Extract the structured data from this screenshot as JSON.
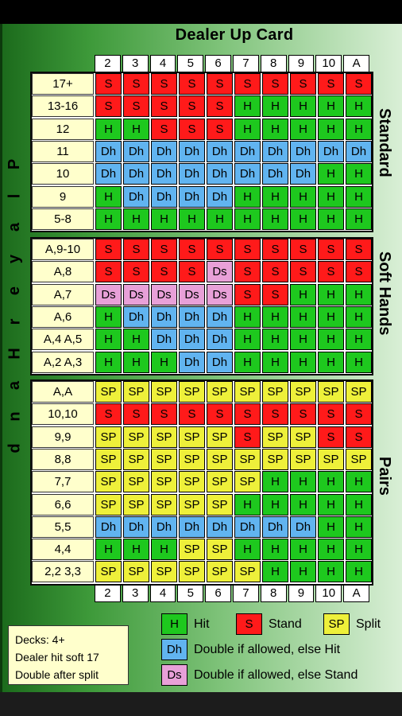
{
  "title": "Dealer Up Card",
  "dealer_cards": [
    "2",
    "3",
    "4",
    "5",
    "6",
    "7",
    "8",
    "9",
    "10",
    "A"
  ],
  "section_labels": {
    "standard": "Standard",
    "soft": "Soft Hands",
    "pairs": "Pairs"
  },
  "side_label": [
    "P",
    "l",
    "a",
    "y",
    "e",
    "r",
    "H",
    "a",
    "n",
    "d"
  ],
  "standard": [
    {
      "label": "17+",
      "cells": [
        "S",
        "S",
        "S",
        "S",
        "S",
        "S",
        "S",
        "S",
        "S",
        "S"
      ]
    },
    {
      "label": "13-16",
      "cells": [
        "S",
        "S",
        "S",
        "S",
        "S",
        "H",
        "H",
        "H",
        "H",
        "H"
      ]
    },
    {
      "label": "12",
      "cells": [
        "H",
        "H",
        "S",
        "S",
        "S",
        "H",
        "H",
        "H",
        "H",
        "H"
      ]
    },
    {
      "label": "11",
      "cells": [
        "Dh",
        "Dh",
        "Dh",
        "Dh",
        "Dh",
        "Dh",
        "Dh",
        "Dh",
        "Dh",
        "Dh"
      ]
    },
    {
      "label": "10",
      "cells": [
        "Dh",
        "Dh",
        "Dh",
        "Dh",
        "Dh",
        "Dh",
        "Dh",
        "Dh",
        "H",
        "H"
      ]
    },
    {
      "label": "9",
      "cells": [
        "H",
        "Dh",
        "Dh",
        "Dh",
        "Dh",
        "H",
        "H",
        "H",
        "H",
        "H"
      ]
    },
    {
      "label": "5-8",
      "cells": [
        "H",
        "H",
        "H",
        "H",
        "H",
        "H",
        "H",
        "H",
        "H",
        "H"
      ]
    }
  ],
  "soft": [
    {
      "label": "A,9-10",
      "cells": [
        "S",
        "S",
        "S",
        "S",
        "S",
        "S",
        "S",
        "S",
        "S",
        "S"
      ]
    },
    {
      "label": "A,8",
      "cells": [
        "S",
        "S",
        "S",
        "S",
        "Ds",
        "S",
        "S",
        "S",
        "S",
        "S"
      ]
    },
    {
      "label": "A,7",
      "cells": [
        "Ds",
        "Ds",
        "Ds",
        "Ds",
        "Ds",
        "S",
        "S",
        "H",
        "H",
        "H"
      ]
    },
    {
      "label": "A,6",
      "cells": [
        "H",
        "Dh",
        "Dh",
        "Dh",
        "Dh",
        "H",
        "H",
        "H",
        "H",
        "H"
      ]
    },
    {
      "label": "A,4  A,5",
      "cells": [
        "H",
        "H",
        "Dh",
        "Dh",
        "Dh",
        "H",
        "H",
        "H",
        "H",
        "H"
      ]
    },
    {
      "label": "A,2  A,3",
      "cells": [
        "H",
        "H",
        "H",
        "Dh",
        "Dh",
        "H",
        "H",
        "H",
        "H",
        "H"
      ]
    }
  ],
  "pairs": [
    {
      "label": "A,A",
      "cells": [
        "SP",
        "SP",
        "SP",
        "SP",
        "SP",
        "SP",
        "SP",
        "SP",
        "SP",
        "SP"
      ]
    },
    {
      "label": "10,10",
      "cells": [
        "S",
        "S",
        "S",
        "S",
        "S",
        "S",
        "S",
        "S",
        "S",
        "S"
      ]
    },
    {
      "label": "9,9",
      "cells": [
        "SP",
        "SP",
        "SP",
        "SP",
        "SP",
        "S",
        "SP",
        "SP",
        "S",
        "S"
      ]
    },
    {
      "label": "8,8",
      "cells": [
        "SP",
        "SP",
        "SP",
        "SP",
        "SP",
        "SP",
        "SP",
        "SP",
        "SP",
        "SP"
      ]
    },
    {
      "label": "7,7",
      "cells": [
        "SP",
        "SP",
        "SP",
        "SP",
        "SP",
        "SP",
        "H",
        "H",
        "H",
        "H"
      ]
    },
    {
      "label": "6,6",
      "cells": [
        "SP",
        "SP",
        "SP",
        "SP",
        "SP",
        "H",
        "H",
        "H",
        "H",
        "H"
      ]
    },
    {
      "label": "5,5",
      "cells": [
        "Dh",
        "Dh",
        "Dh",
        "Dh",
        "Dh",
        "Dh",
        "Dh",
        "Dh",
        "H",
        "H"
      ]
    },
    {
      "label": "4,4",
      "cells": [
        "H",
        "H",
        "H",
        "SP",
        "SP",
        "H",
        "H",
        "H",
        "H",
        "H"
      ]
    },
    {
      "label": "2,2  3,3",
      "cells": [
        "SP",
        "SP",
        "SP",
        "SP",
        "SP",
        "SP",
        "H",
        "H",
        "H",
        "H"
      ]
    }
  ],
  "rules": [
    "Decks: 4+",
    "Dealer hit soft 17",
    "Double after split"
  ],
  "legend": {
    "hit": {
      "code": "H",
      "text": "Hit"
    },
    "stand": {
      "code": "S",
      "text": "Stand"
    },
    "split": {
      "code": "SP",
      "text": "Split"
    },
    "dh": {
      "code": "Dh",
      "text": "Double if allowed, else Hit"
    },
    "ds": {
      "code": "Ds",
      "text": "Double if allowed, else Stand"
    }
  },
  "colors": {
    "S": "#ff1a1a",
    "H": "#1ec81e",
    "Dh": "#61b4f0",
    "Ds": "#e8a0d8",
    "SP": "#eef03a",
    "label_bg": "#ffffcc"
  }
}
